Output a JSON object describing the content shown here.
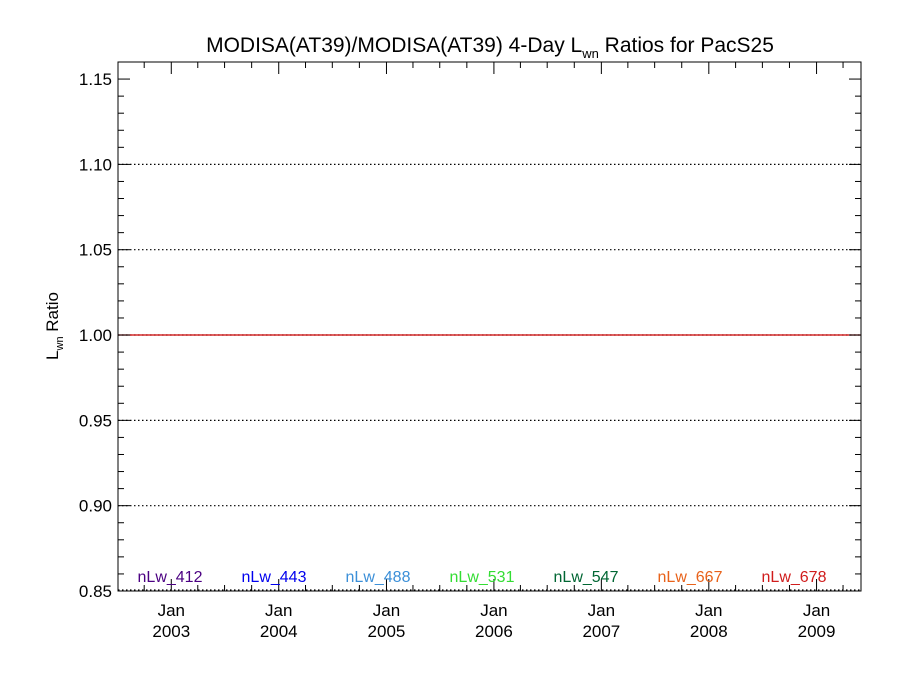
{
  "chart_data": {
    "type": "line",
    "title_main": "MODISA(AT39)/MODISA(AT39) 4-Day L",
    "title_sub": "wn",
    "title_rest": " Ratios for PacS25",
    "ylabel_main": "L",
    "ylabel_sub": "wn",
    "ylabel_rest": " Ratio",
    "ylim": [
      0.85,
      1.16
    ],
    "xlim": [
      "2002-07-04",
      "2009-06-01"
    ],
    "yticks": [
      {
        "value": 0.85,
        "label": "0.85"
      },
      {
        "value": 0.9,
        "label": "0.90"
      },
      {
        "value": 0.95,
        "label": "0.95"
      },
      {
        "value": 1.0,
        "label": "1.00"
      },
      {
        "value": 1.05,
        "label": "1.05"
      },
      {
        "value": 1.1,
        "label": "1.10"
      },
      {
        "value": 1.15,
        "label": "1.15"
      }
    ],
    "xticks": [
      {
        "date": "2003-01-01",
        "month": "Jan",
        "year": "2003"
      },
      {
        "date": "2004-01-01",
        "month": "Jan",
        "year": "2004"
      },
      {
        "date": "2005-01-01",
        "month": "Jan",
        "year": "2005"
      },
      {
        "date": "2006-01-01",
        "month": "Jan",
        "year": "2006"
      },
      {
        "date": "2007-01-01",
        "month": "Jan",
        "year": "2007"
      },
      {
        "date": "2008-01-01",
        "month": "Jan",
        "year": "2008"
      },
      {
        "date": "2009-01-01",
        "month": "Jan",
        "year": "2009"
      }
    ],
    "gridlines": [
      0.9,
      0.95,
      1.05,
      1.1
    ],
    "grid": "dotted horizontal",
    "reference_line": {
      "value": 1.0,
      "color": "#cc0000"
    },
    "legend_placement": "bottom",
    "series": [
      {
        "name": "nLw_412",
        "color": "#4b0082"
      },
      {
        "name": "nLw_443",
        "color": "#0000ee"
      },
      {
        "name": "nLw_488",
        "color": "#3b8fd8"
      },
      {
        "name": "nLw_531",
        "color": "#33dd33"
      },
      {
        "name": "nLw_547",
        "color": "#006633"
      },
      {
        "name": "nLw_667",
        "color": "#e8621a"
      },
      {
        "name": "nLw_678",
        "color": "#d01c1c"
      }
    ]
  }
}
